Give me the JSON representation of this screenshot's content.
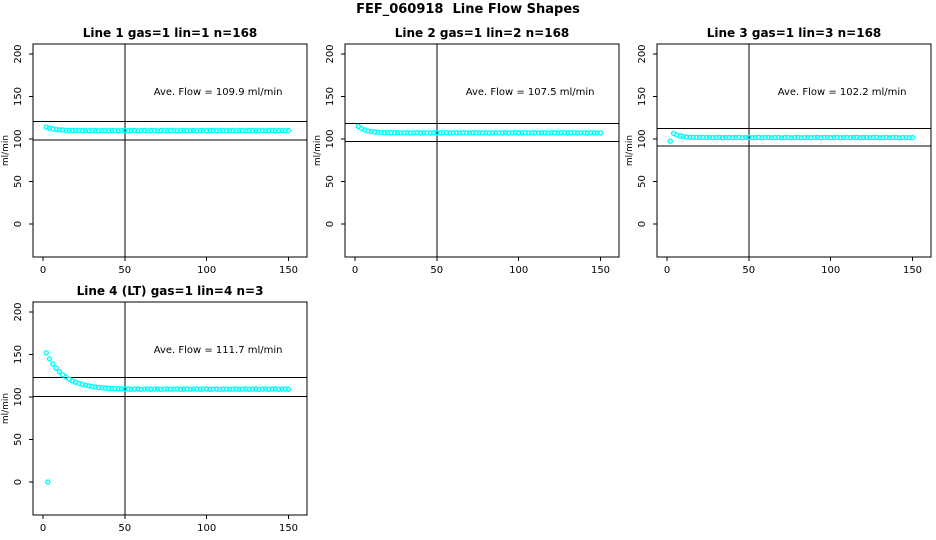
{
  "figure_title": "FEF_060918  Line Flow Shapes",
  "chart_data": {
    "type": "scatter",
    "figure_title": "FEF_060918  Line Flow Shapes",
    "xlim": [
      -6.1,
      161.3
    ],
    "ylim": [
      -38.8,
      211.8
    ],
    "x_ticks": [
      0,
      50,
      100,
      150
    ],
    "y_ticks": [
      0,
      50,
      100,
      150,
      200
    ],
    "ylabel": "ml/min",
    "xlabel": "",
    "vline_x": 50,
    "grid": false,
    "legend": "none",
    "point_color": "#00ffff",
    "axis_color": "#000000",
    "background_color": "#ffffff",
    "charts": [
      {
        "title": "Line 1 gas=1 lin=1 n=168",
        "ave_flow": 109.9,
        "ave_label": "Ave. Flow =  109.9  ml/min",
        "hlines": [
          120.9,
          98.9
        ],
        "annotation_xy": [
          107,
          152
        ],
        "points": [
          [
            2,
            114.0
          ],
          [
            4,
            112.7
          ],
          [
            6,
            111.8
          ],
          [
            8,
            111.2
          ],
          [
            10,
            110.8
          ],
          [
            12,
            110.5
          ],
          [
            14,
            110.4
          ],
          [
            16,
            110.2
          ],
          [
            18,
            110.2
          ],
          [
            20,
            110.1
          ],
          [
            22,
            110.1
          ],
          [
            24,
            110.0
          ],
          [
            26,
            110.1
          ],
          [
            28,
            109.8
          ],
          [
            30,
            110.0
          ],
          [
            32,
            110.2
          ],
          [
            34,
            109.7
          ],
          [
            36,
            110.0
          ],
          [
            38,
            110.1
          ],
          [
            40,
            109.8
          ],
          [
            42,
            110.0
          ],
          [
            44,
            110.2
          ],
          [
            46,
            109.7
          ],
          [
            48,
            110.0
          ],
          [
            50,
            110.1
          ],
          [
            52,
            109.8
          ],
          [
            54,
            110.0
          ],
          [
            56,
            110.2
          ],
          [
            58,
            109.7
          ],
          [
            60,
            110.0
          ],
          [
            62,
            110.1
          ],
          [
            64,
            109.8
          ],
          [
            66,
            110.0
          ],
          [
            68,
            110.2
          ],
          [
            70,
            109.7
          ],
          [
            72,
            110.0
          ],
          [
            74,
            110.1
          ],
          [
            76,
            109.8
          ],
          [
            78,
            110.0
          ],
          [
            80,
            110.2
          ],
          [
            82,
            109.7
          ],
          [
            84,
            110.0
          ],
          [
            86,
            110.1
          ],
          [
            88,
            109.8
          ],
          [
            90,
            110.0
          ],
          [
            92,
            110.2
          ],
          [
            94,
            109.7
          ],
          [
            96,
            110.0
          ],
          [
            98,
            110.1
          ],
          [
            100,
            109.8
          ],
          [
            102,
            110.0
          ],
          [
            104,
            110.2
          ],
          [
            106,
            109.7
          ],
          [
            108,
            110.0
          ],
          [
            110,
            110.1
          ],
          [
            112,
            109.8
          ],
          [
            114,
            110.0
          ],
          [
            116,
            110.2
          ],
          [
            118,
            109.7
          ],
          [
            120,
            110.0
          ],
          [
            122,
            110.1
          ],
          [
            124,
            109.8
          ],
          [
            126,
            110.0
          ],
          [
            128,
            110.2
          ],
          [
            130,
            109.7
          ],
          [
            132,
            110.0
          ],
          [
            134,
            110.1
          ],
          [
            136,
            109.8
          ],
          [
            138,
            110.0
          ],
          [
            140,
            110.2
          ],
          [
            142,
            109.7
          ],
          [
            144,
            110.0
          ],
          [
            146,
            110.1
          ],
          [
            148,
            109.8
          ],
          [
            150,
            110.0
          ]
        ]
      },
      {
        "title": "Line 2 gas=1 lin=2 n=168",
        "ave_flow": 107.5,
        "ave_label": "Ave. Flow =  107.5  ml/min",
        "hlines": [
          118.3,
          96.8
        ],
        "annotation_xy": [
          107,
          152
        ],
        "points": [
          [
            2,
            114.8
          ],
          [
            4,
            112.3
          ],
          [
            6,
            110.7
          ],
          [
            8,
            109.6
          ],
          [
            10,
            108.8
          ],
          [
            12,
            108.3
          ],
          [
            14,
            108.0
          ],
          [
            16,
            107.8
          ],
          [
            18,
            107.6
          ],
          [
            20,
            107.5
          ],
          [
            22,
            107.4
          ],
          [
            24,
            107.4
          ],
          [
            26,
            107.4
          ],
          [
            28,
            107.1
          ],
          [
            30,
            107.3
          ],
          [
            32,
            107.5
          ],
          [
            34,
            107.0
          ],
          [
            36,
            107.3
          ],
          [
            38,
            107.4
          ],
          [
            40,
            107.1
          ],
          [
            42,
            107.3
          ],
          [
            44,
            107.5
          ],
          [
            46,
            107.0
          ],
          [
            48,
            107.3
          ],
          [
            50,
            107.4
          ],
          [
            52,
            107.1
          ],
          [
            54,
            107.3
          ],
          [
            56,
            107.5
          ],
          [
            58,
            107.0
          ],
          [
            60,
            107.3
          ],
          [
            62,
            107.4
          ],
          [
            64,
            107.1
          ],
          [
            66,
            107.3
          ],
          [
            68,
            107.5
          ],
          [
            70,
            107.0
          ],
          [
            72,
            107.3
          ],
          [
            74,
            107.4
          ],
          [
            76,
            107.1
          ],
          [
            78,
            107.3
          ],
          [
            80,
            107.5
          ],
          [
            82,
            107.0
          ],
          [
            84,
            107.3
          ],
          [
            86,
            107.4
          ],
          [
            88,
            107.1
          ],
          [
            90,
            107.3
          ],
          [
            92,
            107.5
          ],
          [
            94,
            107.0
          ],
          [
            96,
            107.3
          ],
          [
            98,
            107.4
          ],
          [
            100,
            107.1
          ],
          [
            102,
            107.3
          ],
          [
            104,
            107.5
          ],
          [
            106,
            107.0
          ],
          [
            108,
            107.3
          ],
          [
            110,
            107.4
          ],
          [
            112,
            107.1
          ],
          [
            114,
            107.3
          ],
          [
            116,
            107.5
          ],
          [
            118,
            107.0
          ],
          [
            120,
            107.3
          ],
          [
            122,
            107.4
          ],
          [
            124,
            107.1
          ],
          [
            126,
            107.3
          ],
          [
            128,
            107.5
          ],
          [
            130,
            107.0
          ],
          [
            132,
            107.3
          ],
          [
            134,
            107.4
          ],
          [
            136,
            107.1
          ],
          [
            138,
            107.3
          ],
          [
            140,
            107.5
          ],
          [
            142,
            107.0
          ],
          [
            144,
            107.3
          ],
          [
            146,
            107.4
          ],
          [
            148,
            107.1
          ],
          [
            150,
            107.3
          ]
        ]
      },
      {
        "title": "Line 3 gas=1 lin=3 n=168",
        "ave_flow": 102.2,
        "ave_label": "Ave. Flow =  102.2  ml/min",
        "hlines": [
          112.4,
          92.0
        ],
        "annotation_xy": [
          107,
          152
        ],
        "points": [
          [
            2,
            97.5
          ],
          [
            4,
            106.6
          ],
          [
            6,
            104.7
          ],
          [
            8,
            103.6
          ],
          [
            10,
            102.9
          ],
          [
            12,
            102.4
          ],
          [
            14,
            102.2
          ],
          [
            16,
            102.0
          ],
          [
            18,
            101.9
          ],
          [
            20,
            101.9
          ],
          [
            22,
            101.9
          ],
          [
            24,
            101.8
          ],
          [
            26,
            101.9
          ],
          [
            28,
            101.6
          ],
          [
            30,
            101.8
          ],
          [
            32,
            102.0
          ],
          [
            34,
            101.5
          ],
          [
            36,
            101.8
          ],
          [
            38,
            101.9
          ],
          [
            40,
            101.6
          ],
          [
            42,
            101.8
          ],
          [
            44,
            102.0
          ],
          [
            46,
            101.5
          ],
          [
            48,
            101.8
          ],
          [
            50,
            101.9
          ],
          [
            52,
            101.6
          ],
          [
            54,
            101.8
          ],
          [
            56,
            102.0
          ],
          [
            58,
            101.5
          ],
          [
            60,
            101.8
          ],
          [
            62,
            101.9
          ],
          [
            64,
            101.6
          ],
          [
            66,
            101.8
          ],
          [
            68,
            102.0
          ],
          [
            70,
            101.5
          ],
          [
            72,
            101.8
          ],
          [
            74,
            101.9
          ],
          [
            76,
            101.6
          ],
          [
            78,
            101.8
          ],
          [
            80,
            102.0
          ],
          [
            82,
            101.5
          ],
          [
            84,
            101.8
          ],
          [
            86,
            101.9
          ],
          [
            88,
            101.6
          ],
          [
            90,
            101.8
          ],
          [
            92,
            102.0
          ],
          [
            94,
            101.5
          ],
          [
            96,
            101.8
          ],
          [
            98,
            101.9
          ],
          [
            100,
            101.6
          ],
          [
            102,
            101.8
          ],
          [
            104,
            102.0
          ],
          [
            106,
            101.5
          ],
          [
            108,
            101.8
          ],
          [
            110,
            101.9
          ],
          [
            112,
            101.6
          ],
          [
            114,
            101.8
          ],
          [
            116,
            102.0
          ],
          [
            118,
            101.5
          ],
          [
            120,
            101.8
          ],
          [
            122,
            101.9
          ],
          [
            124,
            101.6
          ],
          [
            126,
            101.8
          ],
          [
            128,
            102.0
          ],
          [
            130,
            101.5
          ],
          [
            132,
            101.8
          ],
          [
            134,
            101.9
          ],
          [
            136,
            101.6
          ],
          [
            138,
            101.8
          ],
          [
            140,
            102.0
          ],
          [
            142,
            101.5
          ],
          [
            144,
            101.8
          ],
          [
            146,
            101.9
          ],
          [
            148,
            101.6
          ],
          [
            150,
            101.8
          ]
        ]
      },
      {
        "title": "Line 4 (LT) gas=1 lin=4 n=3",
        "ave_flow": 111.7,
        "ave_label": "Ave. Flow =  111.7  ml/min",
        "hlines": [
          122.9,
          100.5
        ],
        "annotation_xy": [
          107,
          152
        ],
        "points": [
          [
            3,
            0
          ],
          [
            2,
            152.0
          ],
          [
            4,
            144.9
          ],
          [
            6,
            138.9
          ],
          [
            8,
            133.9
          ],
          [
            10,
            129.8
          ],
          [
            12,
            126.3
          ],
          [
            14,
            123.4
          ],
          [
            16,
            121.0
          ],
          [
            18,
            119.0
          ],
          [
            20,
            117.4
          ],
          [
            22,
            116.0
          ],
          [
            24,
            114.8
          ],
          [
            26,
            113.9
          ],
          [
            28,
            113.1
          ],
          [
            30,
            112.4
          ],
          [
            32,
            111.8
          ],
          [
            34,
            111.3
          ],
          [
            36,
            111.0
          ],
          [
            38,
            110.6
          ],
          [
            40,
            110.4
          ],
          [
            42,
            110.1
          ],
          [
            44,
            109.9
          ],
          [
            46,
            109.8
          ],
          [
            48,
            109.7
          ],
          [
            50,
            109.5
          ],
          [
            52,
            109.4
          ],
          [
            54,
            109.1
          ],
          [
            56,
            109.3
          ],
          [
            58,
            109.5
          ],
          [
            60,
            109.0
          ],
          [
            62,
            109.3
          ],
          [
            64,
            109.4
          ],
          [
            66,
            109.1
          ],
          [
            68,
            109.3
          ],
          [
            70,
            109.5
          ],
          [
            72,
            109.0
          ],
          [
            74,
            109.3
          ],
          [
            76,
            109.4
          ],
          [
            78,
            109.1
          ],
          [
            80,
            109.3
          ],
          [
            82,
            109.5
          ],
          [
            84,
            109.0
          ],
          [
            86,
            109.3
          ],
          [
            88,
            109.4
          ],
          [
            90,
            109.1
          ],
          [
            92,
            109.3
          ],
          [
            94,
            109.5
          ],
          [
            96,
            109.0
          ],
          [
            98,
            109.3
          ],
          [
            100,
            109.4
          ],
          [
            102,
            109.1
          ],
          [
            104,
            109.3
          ],
          [
            106,
            109.5
          ],
          [
            108,
            109.0
          ],
          [
            110,
            109.3
          ],
          [
            112,
            109.4
          ],
          [
            114,
            109.1
          ],
          [
            116,
            109.3
          ],
          [
            118,
            109.5
          ],
          [
            120,
            109.0
          ],
          [
            122,
            109.3
          ],
          [
            124,
            109.4
          ],
          [
            126,
            109.1
          ],
          [
            128,
            109.3
          ],
          [
            130,
            109.5
          ],
          [
            132,
            109.0
          ],
          [
            134,
            109.3
          ],
          [
            136,
            109.4
          ],
          [
            138,
            109.1
          ],
          [
            140,
            109.3
          ],
          [
            142,
            109.5
          ],
          [
            144,
            109.0
          ],
          [
            146,
            109.3
          ],
          [
            148,
            109.4
          ],
          [
            150,
            109.1
          ]
        ]
      }
    ]
  }
}
